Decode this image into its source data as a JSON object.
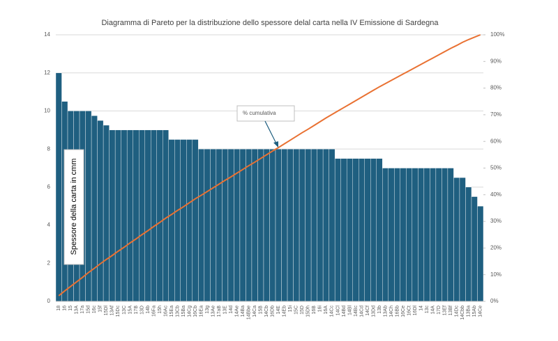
{
  "chart_data": {
    "type": "pareto",
    "title": "Diagramma di Pareto per la distribuzione dello spessore delal carta nella IV Emissione di Sardegna",
    "y_label": "Spessore della carta in cmm",
    "annotation": "% cumulativa",
    "categories": [
      "18",
      "16",
      "15",
      "13A",
      "17a",
      "15d",
      "16c",
      "15f",
      "15Dl",
      "13Af",
      "15Dc",
      "13C",
      "15A",
      "17B",
      "13D",
      "14b",
      "16Fa",
      "15h",
      "16Ac",
      "15Ea",
      "13Cb",
      "15Ba",
      "14Cg",
      "16Cb",
      "16Ea",
      "13g",
      "13Ae",
      "17aB",
      "13E",
      "14d",
      "14Ae",
      "14Ba",
      "14Bbe",
      "14Ca",
      "15B",
      "14Cb",
      "16Db",
      "14E",
      "14Eb",
      "15i",
      "15C",
      "15D",
      "15Dh",
      "16B",
      "16i",
      "16A",
      "14Cc",
      "14Cl",
      "14Bd",
      "14Bl",
      "14Bc",
      "14Cd",
      "14Cf",
      "13Dd",
      "13b",
      "13Ab",
      "14Ch",
      "16Bb",
      "16Ce",
      "16Ct",
      "16Dl",
      "14",
      "13c",
      "14A",
      "17D",
      "13Ef",
      "13Bf",
      "14Dc",
      "14Cbb",
      "13Ba",
      "15Ab",
      "14Ce"
    ],
    "series": [
      {
        "name": "Spessore",
        "color": "#1f5f80",
        "values": [
          12,
          10.5,
          10,
          10,
          10,
          10,
          9.75,
          9.5,
          9.25,
          9,
          9,
          9,
          9,
          9,
          9,
          9,
          9,
          9,
          9,
          8.5,
          8.5,
          8.5,
          8.5,
          8.5,
          8,
          8,
          8,
          8,
          8,
          8,
          8,
          8,
          8,
          8,
          8,
          8,
          8,
          8,
          8,
          8,
          8,
          8,
          8,
          8,
          8,
          8,
          8,
          7.5,
          7.5,
          7.5,
          7.5,
          7.5,
          7.5,
          7.5,
          7.5,
          7,
          7,
          7,
          7,
          7,
          7,
          7,
          7,
          7,
          7,
          7,
          7,
          6.5,
          6.5,
          6,
          5.5,
          5
        ]
      },
      {
        "name": "% cumulativa",
        "color": "#e97132",
        "axis": "y2",
        "values": [
          2.1,
          3.9,
          5.6,
          7.3,
          9.0,
          10.8,
          12.4,
          14.1,
          15.7,
          17.2,
          18.8,
          20.3,
          21.9,
          23.4,
          25.0,
          26.5,
          28.1,
          29.6,
          31.2,
          32.6,
          34.1,
          35.5,
          37.0,
          38.5,
          39.8,
          41.2,
          42.6,
          44.0,
          45.4,
          46.7,
          48.1,
          49.5,
          50.9,
          52.2,
          53.6,
          55.0,
          56.4,
          57.7,
          59.1,
          60.5,
          61.9,
          63.3,
          64.6,
          66.0,
          67.4,
          68.8,
          70.1,
          71.4,
          72.7,
          74.0,
          75.3,
          76.6,
          77.9,
          79.2,
          80.5,
          81.7,
          82.9,
          84.1,
          85.3,
          86.5,
          87.7,
          88.9,
          90.1,
          91.3,
          92.5,
          93.7,
          94.9,
          96.0,
          97.2,
          98.2,
          99.1,
          100
        ]
      }
    ],
    "ylim": [
      0,
      14
    ],
    "yticks": [
      0,
      2,
      4,
      6,
      8,
      10,
      12,
      14
    ],
    "y2lim": [
      0,
      100
    ],
    "y2ticks": [
      {
        "value": 0,
        "label": "0%"
      },
      {
        "value": 10,
        "label": "10%"
      },
      {
        "value": 20,
        "label": "20%"
      },
      {
        "value": 30,
        "label": "30%"
      },
      {
        "value": 40,
        "label": "40%"
      },
      {
        "value": 50,
        "label": "50%"
      },
      {
        "value": 60,
        "label": "60%"
      },
      {
        "value": 70,
        "label": "70%"
      },
      {
        "value": 80,
        "label": "80%"
      },
      {
        "value": 90,
        "label": "90%"
      },
      {
        "value": 100,
        "label": "100%"
      }
    ],
    "grid": true
  }
}
